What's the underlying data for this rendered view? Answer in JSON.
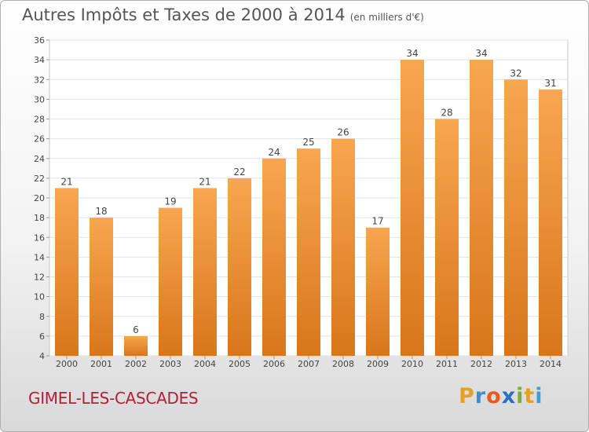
{
  "chart_data": {
    "type": "bar",
    "title": "Autres Impôts et Taxes de 2000 à 2014",
    "subtitle": "(en milliers d'€)",
    "categories": [
      "2000",
      "2001",
      "2002",
      "2003",
      "2004",
      "2005",
      "2006",
      "2007",
      "2008",
      "2009",
      "2010",
      "2011",
      "2012",
      "2013",
      "2014"
    ],
    "values": [
      21,
      18,
      6,
      19,
      21,
      22,
      24,
      25,
      26,
      17,
      34,
      28,
      34,
      32,
      31
    ],
    "ylim": [
      4,
      36
    ],
    "yticks": [
      4,
      6,
      8,
      10,
      12,
      14,
      16,
      18,
      20,
      22,
      24,
      26,
      28,
      30,
      32,
      34,
      36
    ],
    "grid": true,
    "bar_color_top": "#f8a650",
    "bar_color_bottom": "#d8761c"
  },
  "footer": {
    "commune": "GIMEL-LES-CASCADES",
    "logo_letters": [
      "P",
      "r",
      "o",
      "x",
      "i",
      "t",
      "i"
    ],
    "logo_colors": [
      "#e8a020",
      "#3a8fd0",
      "#e85a20",
      "#2a6fc0",
      "#7ab030",
      "#e8a020",
      "#3aa0d0"
    ]
  }
}
